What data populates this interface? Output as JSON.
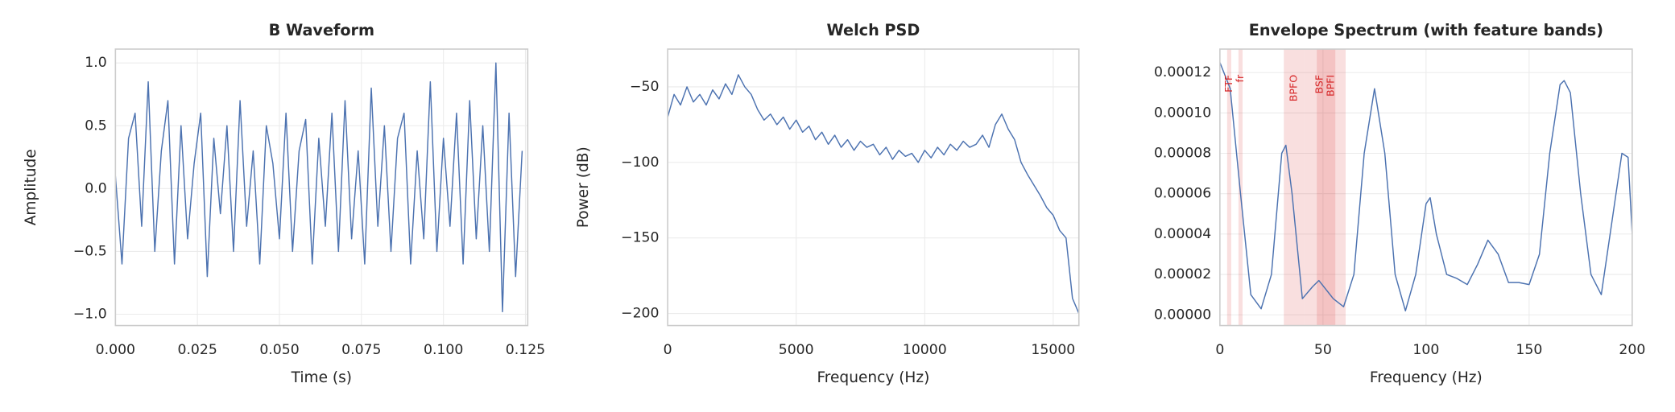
{
  "chart_data": [
    {
      "type": "line",
      "title": "B Waveform",
      "xlabel": "Time (s)",
      "ylabel": "Amplitude",
      "grid": true,
      "xlim": [
        0,
        0.1257
      ],
      "ylim": [
        -1.09,
        1.11
      ],
      "xticks": [
        {
          "value": 0,
          "label": "0.000"
        },
        {
          "value": 0.025,
          "label": "0.025"
        },
        {
          "value": 0.05,
          "label": "0.050"
        },
        {
          "value": 0.075,
          "label": "0.075"
        },
        {
          "value": 0.1,
          "label": "0.100"
        },
        {
          "value": 0.125,
          "label": "0.125"
        }
      ],
      "yticks": [
        {
          "value": -1,
          "label": "−1.0"
        },
        {
          "value": -0.5,
          "label": "−0.5"
        },
        {
          "value": 0,
          "label": "0.0"
        },
        {
          "value": 0.5,
          "label": "0.5"
        },
        {
          "value": 1,
          "label": "1.0"
        }
      ],
      "x": [
        0,
        0.002,
        0.004,
        0.006,
        0.008,
        0.01,
        0.012,
        0.014,
        0.016,
        0.018,
        0.02,
        0.022,
        0.024,
        0.026,
        0.028,
        0.03,
        0.032,
        0.034,
        0.036,
        0.038,
        0.04,
        0.042,
        0.044,
        0.046,
        0.048,
        0.05,
        0.052,
        0.054,
        0.056,
        0.058,
        0.06,
        0.062,
        0.064,
        0.066,
        0.068,
        0.07,
        0.072,
        0.074,
        0.076,
        0.078,
        0.08,
        0.082,
        0.084,
        0.086,
        0.088,
        0.09,
        0.092,
        0.094,
        0.096,
        0.098,
        0.1,
        0.102,
        0.104,
        0.106,
        0.108,
        0.11,
        0.112,
        0.114,
        0.116,
        0.118,
        0.12,
        0.122,
        0.124
      ],
      "series": [
        {
          "color": "#4c72b0",
          "values": [
            0.1,
            -0.6,
            0.4,
            0.6,
            -0.3,
            0.85,
            -0.5,
            0.3,
            0.7,
            -0.6,
            0.5,
            -0.4,
            0.2,
            0.6,
            -0.7,
            0.4,
            -0.2,
            0.5,
            -0.5,
            0.7,
            -0.3,
            0.3,
            -0.6,
            0.5,
            0.2,
            -0.4,
            0.6,
            -0.5,
            0.3,
            0.55,
            -0.6,
            0.4,
            -0.3,
            0.6,
            -0.5,
            0.7,
            -0.4,
            0.3,
            -0.6,
            0.8,
            -0.3,
            0.5,
            -0.5,
            0.4,
            0.6,
            -0.6,
            0.3,
            -0.4,
            0.85,
            -0.5,
            0.4,
            -0.3,
            0.6,
            -0.6,
            0.7,
            -0.4,
            0.5,
            -0.5,
            1.0,
            -0.98,
            0.6,
            -0.7,
            0.3
          ]
        }
      ]
    },
    {
      "type": "line",
      "title": "Welch PSD",
      "xlabel": "Frequency (Hz)",
      "ylabel": "Power (dB)",
      "grid": true,
      "xlim": [
        0,
        16000
      ],
      "ylim": [
        -208,
        -25
      ],
      "xticks": [
        0,
        5000,
        10000,
        15000
      ],
      "yticks": [
        {
          "value": -200,
          "label": "−200"
        },
        {
          "value": -150,
          "label": "−150"
        },
        {
          "value": -100,
          "label": "−100"
        },
        {
          "value": -50,
          "label": "−50"
        }
      ],
      "x": [
        0,
        250,
        500,
        750,
        1000,
        1250,
        1500,
        1750,
        2000,
        2250,
        2500,
        2750,
        3000,
        3250,
        3500,
        3750,
        4000,
        4250,
        4500,
        4750,
        5000,
        5250,
        5500,
        5750,
        6000,
        6250,
        6500,
        6750,
        7000,
        7250,
        7500,
        7750,
        8000,
        8250,
        8500,
        8750,
        9000,
        9250,
        9500,
        9750,
        10000,
        10250,
        10500,
        10750,
        11000,
        11250,
        11500,
        11750,
        12000,
        12250,
        12500,
        12750,
        13000,
        13250,
        13500,
        13750,
        14000,
        14250,
        14500,
        14750,
        15000,
        15250,
        15500,
        15750,
        16000
      ],
      "series": [
        {
          "color": "#4c72b0",
          "values": [
            -70,
            -55,
            -62,
            -50,
            -60,
            -55,
            -62,
            -52,
            -58,
            -48,
            -55,
            -42,
            -50,
            -55,
            -65,
            -72,
            -68,
            -75,
            -70,
            -78,
            -72,
            -80,
            -76,
            -85,
            -80,
            -88,
            -82,
            -90,
            -85,
            -92,
            -86,
            -90,
            -88,
            -95,
            -90,
            -98,
            -92,
            -96,
            -94,
            -100,
            -92,
            -97,
            -90,
            -95,
            -88,
            -92,
            -86,
            -90,
            -88,
            -82,
            -90,
            -75,
            -68,
            -78,
            -85,
            -100,
            -108,
            -115,
            -122,
            -130,
            -135,
            -145,
            -150,
            -190,
            -200
          ]
        }
      ]
    },
    {
      "type": "line",
      "title": "Envelope Spectrum (with feature bands)",
      "xlabel": "Frequency (Hz)",
      "grid": true,
      "xlim": [
        0,
        200
      ],
      "ylim": [
        -5.3e-06,
        0.0001316
      ],
      "xticks": [
        0,
        50,
        100,
        150,
        200
      ],
      "yticks": [
        {
          "value": 0,
          "label": "0.00000"
        },
        {
          "value": 2e-05,
          "label": "0.00002"
        },
        {
          "value": 4e-05,
          "label": "0.00004"
        },
        {
          "value": 6e-05,
          "label": "0.00006"
        },
        {
          "value": 8e-05,
          "label": "0.00008"
        },
        {
          "value": 0.0001,
          "label": "0.00010"
        },
        {
          "value": 0.00012,
          "label": "0.00012"
        }
      ],
      "band_color": "#d62728",
      "bands": [
        {
          "label": "FTF",
          "xmin": 3.5,
          "xmax": 5.5
        },
        {
          "label": "fr",
          "xmin": 9,
          "xmax": 11
        },
        {
          "label": "BPFO",
          "xmin": 31,
          "xmax": 41
        },
        {
          "label": "BSF",
          "xmin": 41,
          "xmax": 56
        },
        {
          "label": "BPFI",
          "xmin": 47,
          "xmax": 61
        }
      ],
      "x": [
        0,
        5,
        10,
        15,
        20,
        25,
        30,
        32,
        35,
        40,
        45,
        48,
        55,
        60,
        65,
        70,
        75,
        80,
        85,
        90,
        95,
        100,
        102,
        105,
        110,
        115,
        120,
        125,
        130,
        135,
        140,
        145,
        150,
        155,
        160,
        165,
        167,
        170,
        175,
        180,
        185,
        190,
        195,
        198,
        200
      ],
      "series": [
        {
          "color": "#4c72b0",
          "values": [
            0.000125,
            0.000112,
            6e-05,
            1e-05,
            3e-06,
            2e-05,
            8e-05,
            8.4e-05,
            6e-05,
            8e-06,
            1.4e-05,
            1.7e-05,
            8e-06,
            4e-06,
            2e-05,
            8e-05,
            0.000112,
            8e-05,
            2e-05,
            2e-06,
            2e-05,
            5.5e-05,
            5.8e-05,
            4e-05,
            2e-05,
            1.8e-05,
            1.5e-05,
            2.5e-05,
            3.7e-05,
            3e-05,
            1.6e-05,
            1.6e-05,
            1.5e-05,
            3e-05,
            8e-05,
            0.000114,
            0.000116,
            0.00011,
            6e-05,
            2e-05,
            1e-05,
            4.5e-05,
            8e-05,
            7.8e-05,
            4e-05
          ]
        }
      ]
    }
  ]
}
